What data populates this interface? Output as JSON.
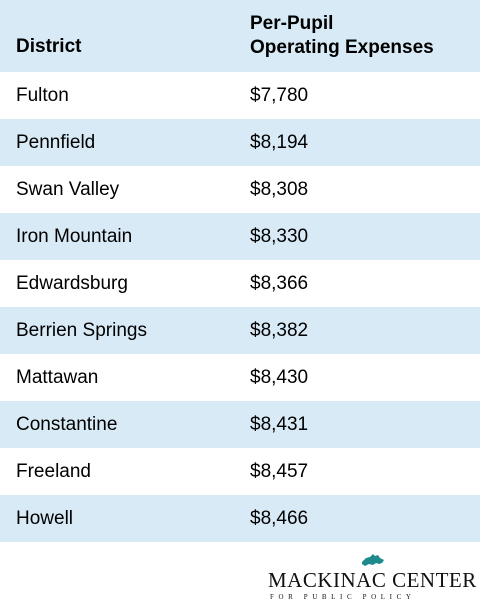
{
  "table": {
    "headers": {
      "district": "District",
      "expenses_line1": "Per-Pupil",
      "expenses_line2": "Operating Expenses"
    },
    "rows": [
      {
        "district": "Fulton",
        "expense": "$7,780"
      },
      {
        "district": "Pennfield",
        "expense": "$8,194"
      },
      {
        "district": "Swan Valley",
        "expense": "$8,308"
      },
      {
        "district": "Iron Mountain",
        "expense": "$8,330"
      },
      {
        "district": "Edwardsburg",
        "expense": "$8,366"
      },
      {
        "district": "Berrien Springs",
        "expense": "$8,382"
      },
      {
        "district": "Mattawan",
        "expense": "$8,430"
      },
      {
        "district": "Constantine",
        "expense": "$8,431"
      },
      {
        "district": "Freeland",
        "expense": "$8,457"
      },
      {
        "district": "Howell",
        "expense": "$8,466"
      }
    ]
  },
  "logo": {
    "name": "MACKINAC CENTER",
    "subtitle": "FOR PUBLIC POLICY",
    "icon": "michigan-map-icon",
    "accent_color": "#1e8a8c"
  },
  "colors": {
    "stripe": "#d8eaf6",
    "text": "#000000"
  }
}
